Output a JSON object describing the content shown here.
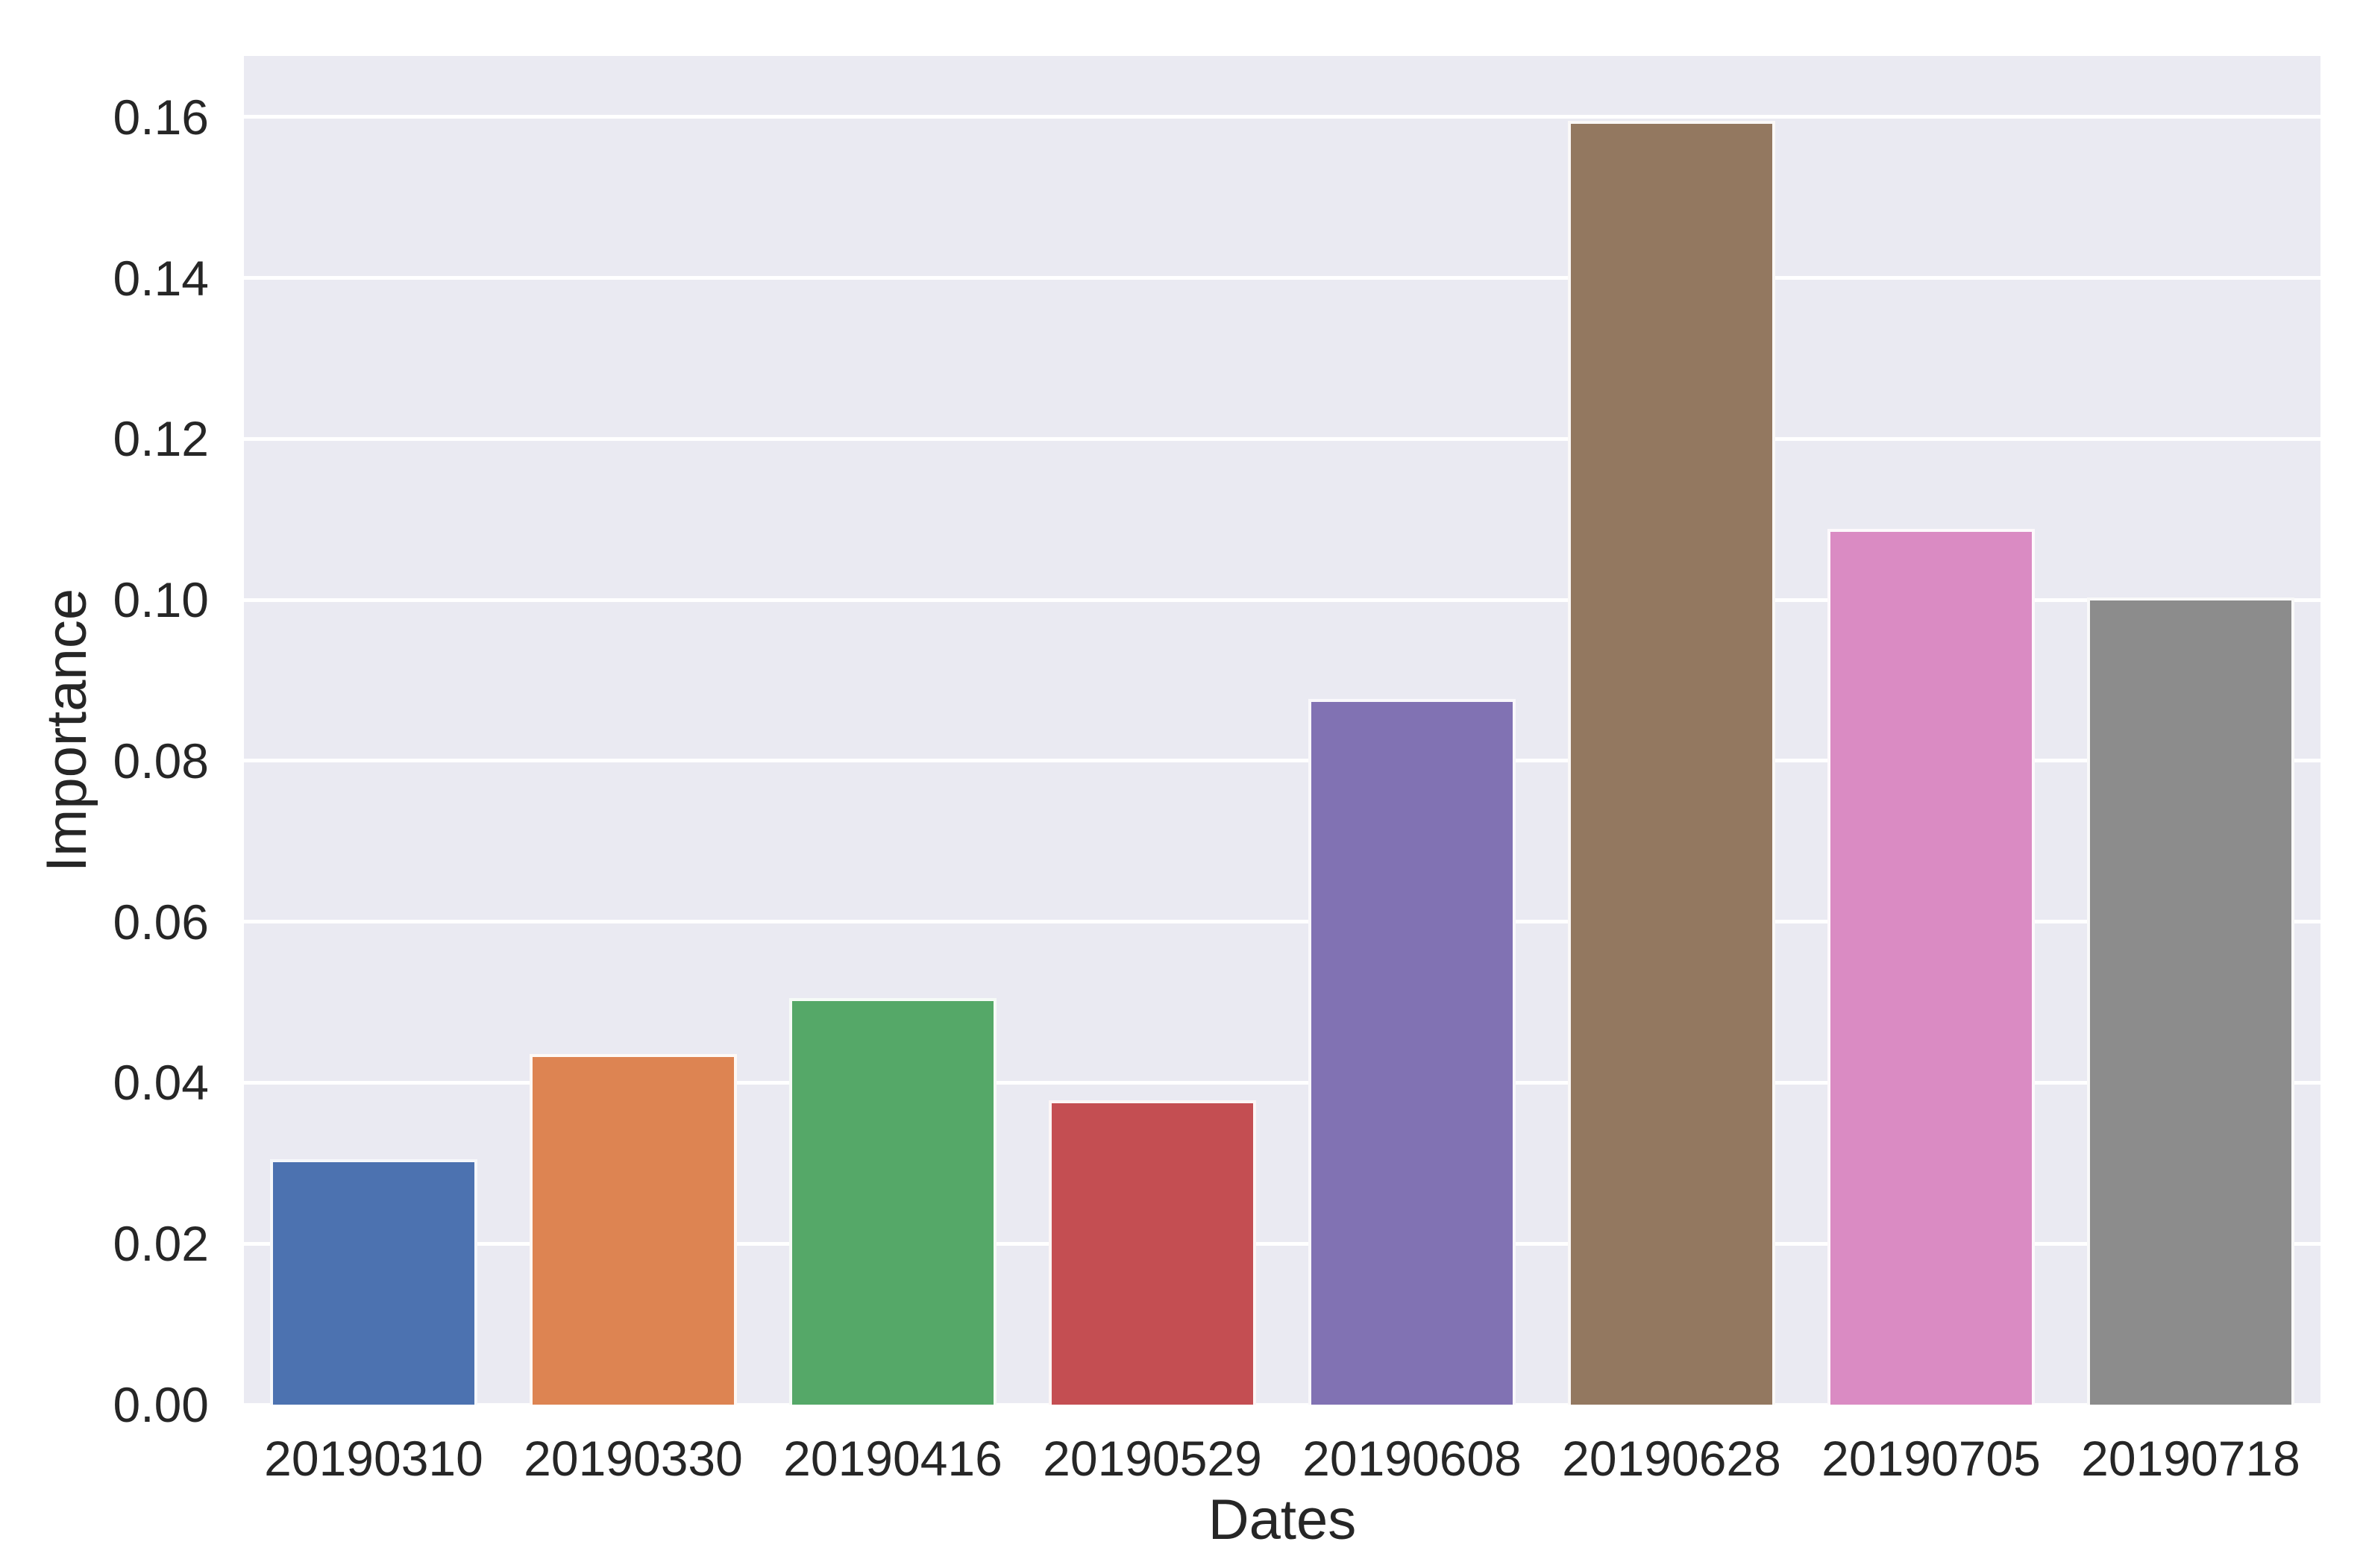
{
  "figure": {
    "background": "#ffffff",
    "plot_background": "#eaeaf2",
    "grid_color": "#ffffff",
    "text_color": "#262626"
  },
  "chart_data": {
    "type": "bar",
    "title": "",
    "xlabel": "Dates",
    "ylabel": "Importance",
    "categories": [
      "20190310",
      "20190330",
      "20190416",
      "20190529",
      "20190608",
      "20190628",
      "20190705",
      "20190718"
    ],
    "values": [
      0.0305,
      0.0436,
      0.0505,
      0.0378,
      0.0877,
      0.1595,
      0.1088,
      0.1003
    ],
    "bar_colors": [
      "#4C72B0",
      "#DD8452",
      "#55A868",
      "#C44E52",
      "#8172B3",
      "#937860",
      "#DA8BC3",
      "#8C8C8C"
    ],
    "ylim": [
      0,
      0.1676
    ],
    "yticks": [
      0.0,
      0.02,
      0.04,
      0.06,
      0.08,
      0.1,
      0.12,
      0.14,
      0.16
    ],
    "ytick_decimals": 2,
    "grid": true,
    "legend": false,
    "bar_rel_width": 0.8
  }
}
